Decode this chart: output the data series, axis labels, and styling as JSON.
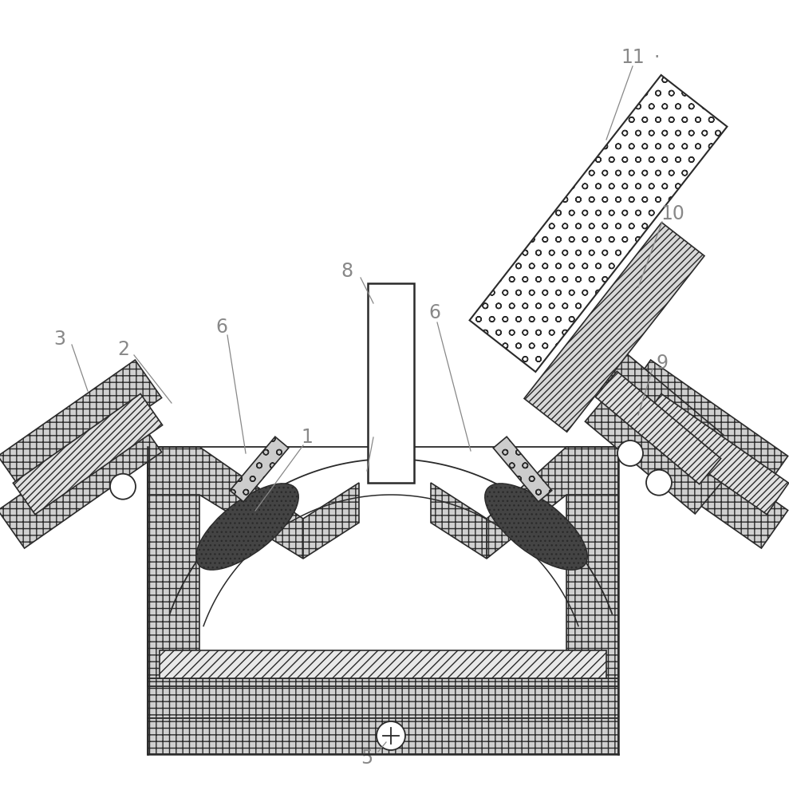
{
  "bg_color": "#ffffff",
  "dark": "#2a2a2a",
  "gray": "#888888",
  "light_gray": "#d0d0d0",
  "mid_gray": "#b0b0b0",
  "white": "#ffffff",
  "figsize": [
    9.89,
    10.0
  ],
  "dpi": 100,
  "label_fontsize": 17,
  "xlim": [
    0,
    989
  ],
  "ylim": [
    0,
    1000
  ]
}
